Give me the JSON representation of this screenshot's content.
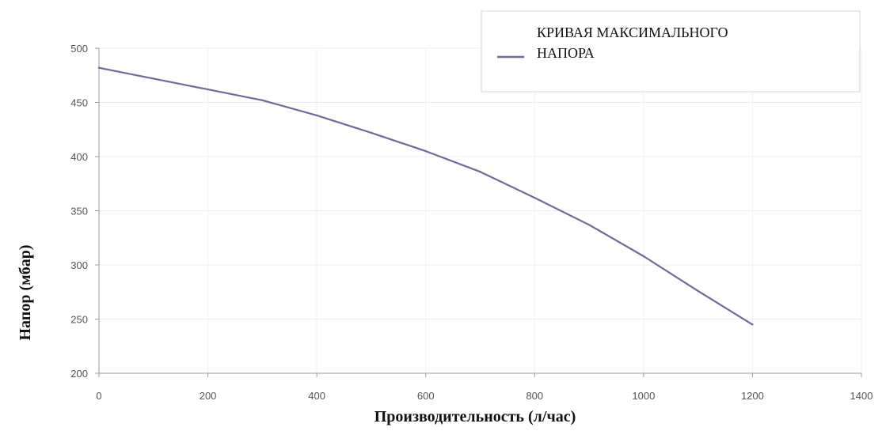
{
  "chart_data": {
    "type": "line",
    "title": "",
    "xlabel": "Производительность (л/час)",
    "ylabel": "Напор (мбар)",
    "xlim": [
      0,
      1400
    ],
    "ylim": [
      200,
      500
    ],
    "x_ticks": [
      0,
      200,
      400,
      600,
      800,
      1000,
      1200,
      1400
    ],
    "y_ticks": [
      200,
      250,
      300,
      350,
      400,
      450,
      500
    ],
    "grid": true,
    "legend_position": "top-right",
    "series": [
      {
        "name": "КРИВАЯ МАКСИМАЛЬНОГО НАПОРА",
        "color": "#6b6b9e",
        "x": [
          0,
          100,
          200,
          300,
          400,
          500,
          600,
          700,
          800,
          900,
          1000,
          1100,
          1200
        ],
        "y": [
          482,
          472,
          462,
          452,
          438,
          422,
          405,
          386,
          362,
          337,
          308,
          276,
          245
        ]
      }
    ]
  }
}
